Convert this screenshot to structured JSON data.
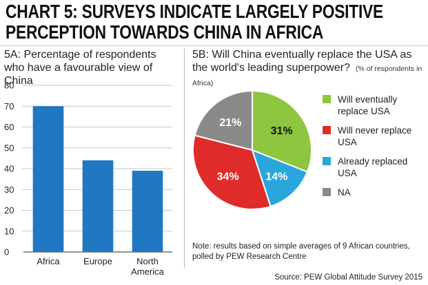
{
  "headline": {
    "line1": "CHART 5: SURVEYS INDICATE LARGELY POSITIVE",
    "line2": "PERCEPTION TOWARDS CHINA IN AFRICA"
  },
  "chart_data": [
    {
      "type": "bar",
      "title": "5A: Percentage of respondents who have a favourable view of China",
      "categories": [
        "Africa",
        "Europe",
        "North\nAmerica"
      ],
      "values": [
        70,
        44,
        39
      ],
      "ylim": [
        0,
        80
      ],
      "yticks": [
        0,
        10,
        20,
        30,
        40,
        50,
        60,
        70,
        80
      ],
      "grid": true,
      "colors": {
        "bar": "#1f78c1",
        "grid": "#c8c8c8",
        "axis": "#555555"
      }
    },
    {
      "type": "pie",
      "title": "5B: Will China eventually replace the USA as the world's leading superpower?",
      "subtitle": "(% of respondents in Africa)",
      "slices": [
        {
          "label": "Will eventually replace USA",
          "value": 31,
          "display": "31%",
          "color": "#8ec63f",
          "text_color": "#111111"
        },
        {
          "label": "Already replaced USA",
          "value": 14,
          "display": "14%",
          "color": "#2aa6dd",
          "text_color": "#ffffff"
        },
        {
          "label": "Will never replace USA",
          "value": 34,
          "display": "34%",
          "color": "#e02b2b",
          "text_color": "#ffffff"
        },
        {
          "label": "NA",
          "value": 21,
          "display": "21%",
          "color": "#8a8a8a",
          "text_color": "#ffffff"
        }
      ],
      "legend": [
        {
          "label": "Will eventually replace USA",
          "color": "#8ec63f"
        },
        {
          "label": "Will never replace USA",
          "color": "#e02b2b"
        },
        {
          "label": "Already replaced USA",
          "color": "#2aa6dd"
        },
        {
          "label": "NA",
          "color": "#8a8a8a"
        }
      ],
      "legend_position": "right"
    }
  ],
  "note": "Note: results based on simple averages of 9 African countries, polled by PEW Research Centre",
  "source": "Source: PEW Global Attitude Survey 2015"
}
